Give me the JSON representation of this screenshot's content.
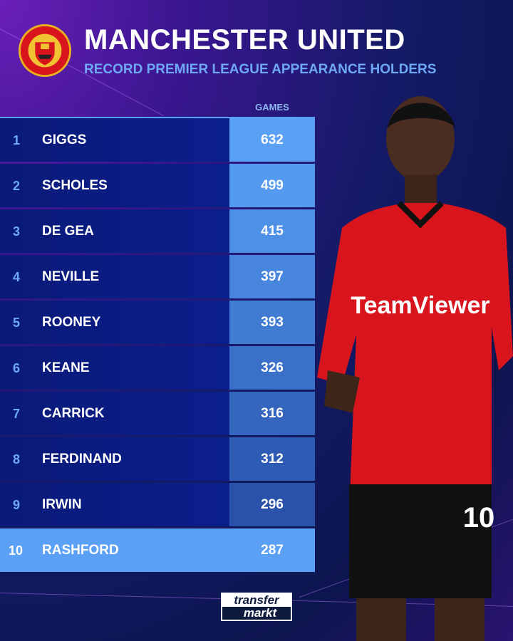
{
  "header": {
    "title": "MANCHESTER UNITED",
    "subtitle": "RECORD PREMIER LEAGUE APPEARANCE HOLDERS",
    "logo_text": "MANCHESTER UNITED"
  },
  "table": {
    "column_header": "GAMES",
    "rows": [
      {
        "rank": "1",
        "name": "GIGGS",
        "games": "632"
      },
      {
        "rank": "2",
        "name": "SCHOLES",
        "games": "499"
      },
      {
        "rank": "3",
        "name": "DE GEA",
        "games": "415"
      },
      {
        "rank": "4",
        "name": "NEVILLE",
        "games": "397"
      },
      {
        "rank": "5",
        "name": "ROONEY",
        "games": "393"
      },
      {
        "rank": "6",
        "name": "KEANE",
        "games": "326"
      },
      {
        "rank": "7",
        "name": "CARRICK",
        "games": "316"
      },
      {
        "rank": "8",
        "name": "FERDINAND",
        "games": "312"
      },
      {
        "rank": "9",
        "name": "IRWIN",
        "games": "296"
      },
      {
        "rank": "10",
        "name": "RASHFORD",
        "games": "287",
        "highlighted": true
      }
    ]
  },
  "photo": {
    "shirt_sponsor": "TeamViewer",
    "shirt_number": "10"
  },
  "footer": {
    "brand_line1": "transfer",
    "brand_line2": "markt"
  },
  "colors": {
    "accent": "#5aa0f5",
    "row_bg": "#0b1f8c",
    "shirt": "#d8141c"
  }
}
